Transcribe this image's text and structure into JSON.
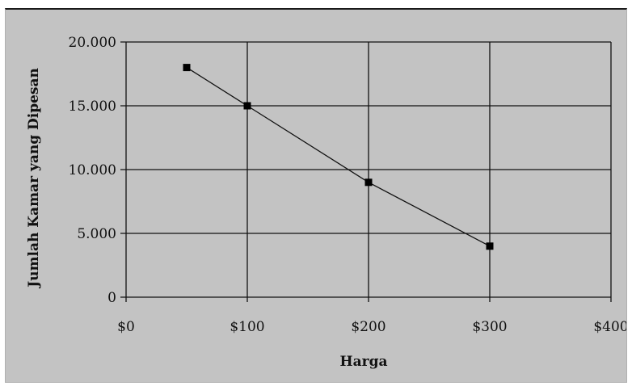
{
  "chart_data": {
    "type": "line",
    "title": "",
    "xlabel": "Harga",
    "ylabel": "Jumlah Kamar yang Dipesan",
    "x_ticks": [
      {
        "value": 0,
        "label": "$0"
      },
      {
        "value": 100,
        "label": "$100"
      },
      {
        "value": 200,
        "label": "$200"
      },
      {
        "value": 300,
        "label": "$300"
      },
      {
        "value": 400,
        "label": "$400"
      }
    ],
    "y_ticks": [
      {
        "value": 0,
        "label": "0"
      },
      {
        "value": 5000,
        "label": "5.000"
      },
      {
        "value": 10000,
        "label": "10.000"
      },
      {
        "value": 15000,
        "label": "15.000"
      },
      {
        "value": 20000,
        "label": "20.000"
      }
    ],
    "xlim": [
      0,
      400
    ],
    "ylim": [
      0,
      20000
    ],
    "grid": true,
    "series": [
      {
        "points": [
          {
            "x": 50,
            "y": 18000
          },
          {
            "x": 100,
            "y": 15000
          },
          {
            "x": 200,
            "y": 9000
          },
          {
            "x": 300,
            "y": 4000
          }
        ]
      }
    ],
    "colors": {
      "background": "#c3c3c3",
      "gridline": "#111111",
      "line": "#111111",
      "marker": "#000000"
    }
  }
}
